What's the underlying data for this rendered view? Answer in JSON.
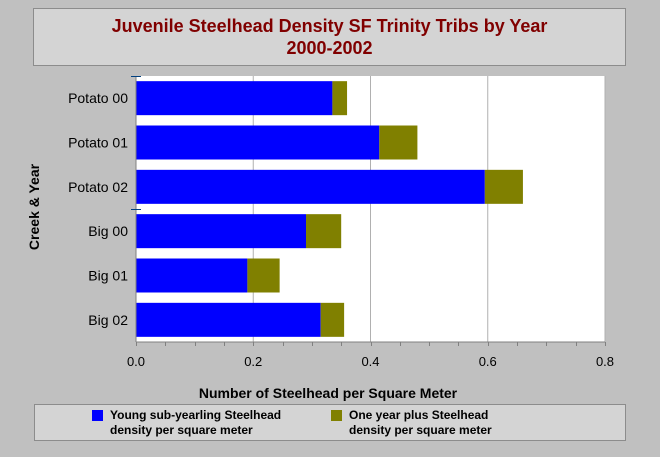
{
  "chart_data": {
    "type": "bar",
    "orientation": "horizontal",
    "stacked": true,
    "title_line1": "Juvenile Steelhead Density SF Trinity Tribs by Year",
    "title_line2": "2000-2002",
    "xlabel": "Number of Steelhead per Square Meter",
    "ylabel": "Creek & Year",
    "xlim": [
      0,
      0.8
    ],
    "xticks": [
      "0.0",
      "0.2",
      "0.4",
      "0.6",
      "0.8"
    ],
    "grid": true,
    "legend_placement": "bottom",
    "categories": [
      "Potato 00",
      "Potato 01",
      "Potato 02",
      "Big 00",
      "Big 01",
      "Big 02"
    ],
    "series": [
      {
        "name": "Young sub-yearling Steelhead\ndensity per square meter",
        "color": "#0000ff",
        "values": [
          0.335,
          0.415,
          0.595,
          0.29,
          0.19,
          0.315
        ]
      },
      {
        "name": "One year plus Steelhead\ndensity per square meter",
        "color": "#808000",
        "values": [
          0.025,
          0.065,
          0.065,
          0.06,
          0.055,
          0.04
        ]
      }
    ]
  }
}
